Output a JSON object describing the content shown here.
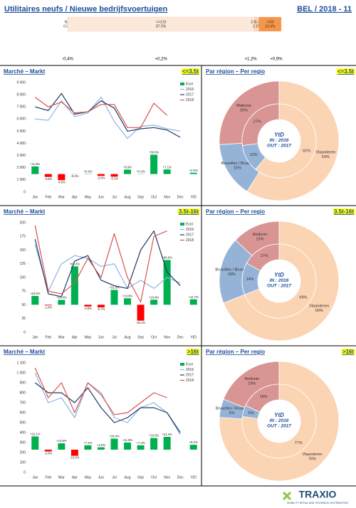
{
  "header": {
    "title": "Utilitaires neufs / Nieuwe bedrijfsvoertuigen",
    "code": "BEL / 2018 - 11"
  },
  "footer": {
    "logo": "TRAXIO",
    "tagline": "MOBILITY RETAIL AND TECHNICAL DISTRIBUTION"
  },
  "chart_data": [
    {
      "type": "bar_stacked_h",
      "categories": [
        "N/A",
        "<=3,5t",
        "3.5t-16t",
        ">16t"
      ],
      "values": [
        0.0,
        87.5,
        2.1,
        10.4
      ],
      "value_labels": [
        "0.0%",
        "87.5%",
        "2.1%",
        "10.4%"
      ],
      "annotations": [
        "-0,4%",
        "+0,2%",
        "+1,2%",
        "+0,9%"
      ],
      "colors": [
        "#fde9d9",
        "#fde9d9",
        "#fcd5b4",
        "#f79646"
      ],
      "xlim": [
        0,
        100
      ]
    },
    {
      "type": "combo",
      "title": "Marché – Markt",
      "badge": "<=3.5t",
      "categories": [
        "Jan",
        "Feb",
        "Mar",
        "Apr",
        "May",
        "Jun",
        "Jul",
        "Aug",
        "Sep",
        "Oct",
        "Nov",
        "Dec",
        "YtD"
      ],
      "ylim": [
        0,
        9000
      ],
      "yticks": [
        0,
        {
          "value": 1000,
          "label": "1 000"
        },
        {
          "value": 2000,
          "label": "2 000"
        },
        {
          "value": 3000,
          "label": "3 000"
        },
        {
          "value": 4000,
          "label": "4 000"
        },
        {
          "value": 5000,
          "label": "5 000"
        },
        {
          "value": 6000,
          "label": "6 000"
        },
        {
          "value": 7000,
          "label": "7 000"
        },
        {
          "value": 8000,
          "label": "8 000"
        },
        {
          "value": 9000,
          "label": "9 000"
        }
      ],
      "y2lim": [
        -28,
        142
      ],
      "grid": false,
      "legend": "top-right",
      "series": [
        {
          "name": "Evol",
          "type": "bar",
          "axis": "y2",
          "color": "#00b050",
          "negative_color": "#ff0000",
          "values": [
            11.8,
            -4.5,
            -9.5,
            -0.2,
            0.4,
            -2.9,
            -4.1,
            6.9,
            0.3,
            30.0,
            7.1,
            null,
            2.0
          ],
          "value_labels": [
            "+11.8%",
            "-4.5%",
            "-9.5%",
            "-0.2%",
            "+0.4%",
            "-2.9%",
            "-4.1%",
            "+6.9%",
            "+0.3%",
            "+30.0%",
            "+7.1%",
            null,
            "+2.0%"
          ]
        },
        {
          "name": "2016",
          "type": "line",
          "color": "#8db3e2",
          "values": [
            6000,
            5900,
            7500,
            6200,
            6500,
            7800,
            5800,
            4400,
            5400,
            5500,
            5200,
            5000,
            null
          ]
        },
        {
          "name": "2017",
          "type": "line",
          "color": "#1f3864",
          "values": [
            7000,
            6700,
            8100,
            6400,
            6600,
            7500,
            6900,
            5000,
            5200,
            5300,
            5100,
            4500,
            null
          ]
        },
        {
          "name": "2018",
          "type": "line",
          "color": "#d9534f",
          "values": [
            7800,
            7000,
            7400,
            6500,
            6600,
            7200,
            7200,
            5300,
            5300,
            7300,
            6300,
            null,
            null
          ]
        }
      ]
    },
    {
      "type": "donut",
      "title": "Par région – Per regio",
      "badge": "<=3.5t",
      "center_text": [
        "YtD",
        "IN : 2016",
        "OUT : 2017"
      ],
      "categories": [
        "Vlaanderen",
        "Bruxelles / Brussel",
        "Wallonie"
      ],
      "colors": [
        "#fbd4b4",
        "#95b3d7",
        "#d99594"
      ],
      "outer": {
        "values": [
          59,
          15,
          26
        ],
        "value_labels": [
          "59%",
          "15%",
          "26%"
        ]
      },
      "inner": {
        "values": [
          61,
          12,
          27
        ],
        "value_labels": [
          "61%",
          "12%",
          "27%"
        ]
      }
    },
    {
      "type": "combo",
      "title": "Marché – Markt",
      "badge": "3.5t-16t",
      "categories": [
        "Jan",
        "Feb",
        "Mar",
        "Apr",
        "May",
        "Jun",
        "Jul",
        "Aug",
        "Sep",
        "Oct",
        "Nov",
        "Dec",
        "YtD"
      ],
      "ylim": [
        0,
        200
      ],
      "yticks": [
        0,
        25,
        50,
        75,
        100,
        125,
        150,
        175,
        200
      ],
      "y2lim": [
        -59,
        176
      ],
      "grid": false,
      "legend": "top-right",
      "series": [
        {
          "name": "Evol",
          "type": "bar",
          "axis": "y2",
          "color": "#00b050",
          "negative_color": "#ff0000",
          "values": [
            18.9,
            -1.4,
            10.4,
            82.3,
            -3.8,
            -5.7,
            31.9,
            13.8,
            -34.1,
            10.8,
            96.0,
            null,
            11.7
          ],
          "value_labels": [
            "+18.9%",
            "-1.4%",
            "+10.4%",
            "+82.3%",
            "-3.8%",
            "-5.7%",
            "+31.9%",
            "+13.8%",
            "-34.1%",
            "+10.8%",
            "+96.0%",
            null,
            "+11.7%"
          ]
        },
        {
          "name": "2016",
          "type": "line",
          "color": "#8db3e2",
          "values": [
            160,
            75,
            125,
            140,
            135,
            120,
            125,
            80,
            95,
            80,
            100,
            90,
            null
          ]
        },
        {
          "name": "2017",
          "type": "line",
          "color": "#1f3864",
          "values": [
            170,
            70,
            65,
            130,
            140,
            95,
            85,
            80,
            150,
            185,
            110,
            85,
            null
          ]
        },
        {
          "name": "2018",
          "type": "line",
          "color": "#d9534f",
          "values": [
            195,
            75,
            70,
            90,
            135,
            100,
            180,
            100,
            55,
            175,
            185,
            null,
            null
          ]
        }
      ]
    },
    {
      "type": "donut",
      "title": "Par région – Per regio",
      "badge": "3.5t-16t",
      "center_text": [
        "YtD",
        "IN : 2016",
        "OUT : 2017"
      ],
      "categories": [
        "Vlaanderen",
        "Bruxelles / Brussel",
        "Wallonie"
      ],
      "colors": [
        "#fbd4b4",
        "#95b3d7",
        "#d99594"
      ],
      "outer": {
        "values": [
          69,
          18,
          13
        ],
        "value_labels": [
          "69%",
          "18%",
          "13%"
        ]
      },
      "inner": {
        "values": [
          69,
          14,
          17
        ],
        "value_labels": [
          "69%",
          "14%",
          "17%"
        ]
      }
    },
    {
      "type": "combo",
      "title": "Marché – Markt",
      "badge": ">16t",
      "categories": [
        "Jan",
        "Feb",
        "Mar",
        "Apr",
        "May",
        "Jun",
        "Jul",
        "Aug",
        "Sep",
        "Oct",
        "Nov",
        "Dec",
        "YtD"
      ],
      "ylim": [
        0,
        1100
      ],
      "yticks": [
        0,
        100,
        200,
        300,
        400,
        500,
        600,
        700,
        800,
        900,
        {
          "value": 1000,
          "label": "1 000"
        },
        {
          "value": 1100,
          "label": "1 100"
        }
      ],
      "y2lim": [
        -38,
        145
      ],
      "grid": false,
      "legend": "top-right",
      "series": [
        {
          "name": "Evol",
          "type": "bar",
          "axis": "y2",
          "color": "#00b050",
          "negative_color": "#ff0000",
          "values": [
            22.1,
            -2.9,
            10.6,
            -10.2,
            7.4,
            4.0,
            18.4,
            11.9,
            7.4,
            19.5,
            21.4,
            null,
            8.2
          ],
          "value_labels": [
            "+22.1%",
            "-2.9%",
            "+10.6%",
            "-10.2%",
            "+7.4%",
            "+4.0%",
            "+18.4%",
            "+11.9%",
            "+7.4%",
            "+19.5%",
            "+21.4%",
            null,
            "+8.2%"
          ]
        },
        {
          "name": "2016",
          "type": "line",
          "color": "#8db3e2",
          "values": [
            1000,
            700,
            750,
            550,
            900,
            800,
            550,
            500,
            650,
            700,
            600,
            380,
            null
          ]
        },
        {
          "name": "2017",
          "type": "line",
          "color": "#1f3864",
          "values": [
            900,
            800,
            800,
            700,
            850,
            650,
            500,
            550,
            650,
            650,
            600,
            400,
            null
          ]
        },
        {
          "name": "2018",
          "type": "line",
          "color": "#d9534f",
          "values": [
            1050,
            750,
            900,
            600,
            900,
            780,
            580,
            600,
            700,
            800,
            750,
            null,
            null
          ]
        }
      ]
    },
    {
      "type": "donut",
      "title": "Par région – Per regio",
      "badge": ">16t",
      "center_text": [
        "YtD",
        "IN : 2016",
        "OUT : 2017"
      ],
      "categories": [
        "Vlaanderen",
        "Bruxelles / Brussel",
        "Wallonie"
      ],
      "colors": [
        "#fbd4b4",
        "#95b3d7",
        "#d99594"
      ],
      "outer": {
        "values": [
          76,
          5,
          19
        ],
        "value_labels": [
          "76%",
          "5%",
          "19%"
        ]
      },
      "inner": {
        "values": [
          77,
          5,
          18
        ],
        "value_labels": [
          "77%",
          "5%",
          "18%"
        ]
      }
    }
  ]
}
